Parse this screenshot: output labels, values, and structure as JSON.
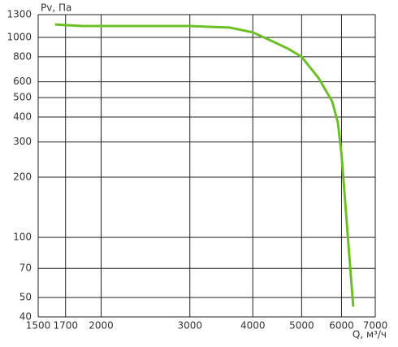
{
  "chart_data": {
    "type": "line",
    "x_label": "Q, м³/ч",
    "y_label": "Pv, Па",
    "x": [
      1620,
      1830,
      2300,
      3000,
      3600,
      4000,
      4400,
      4700,
      5000,
      5400,
      5750,
      5900,
      6000,
      6330
    ],
    "series": [
      {
        "name": "Pv",
        "color": "#6cc024",
        "values": [
          1160,
          1140,
          1140,
          1140,
          1120,
          1060,
          950,
          878,
          800,
          627,
          478,
          376,
          260,
          45
        ]
      }
    ],
    "xscale": "log",
    "yscale": "log",
    "xlim": [
      1500,
      7000
    ],
    "ylim": [
      40,
      1300
    ],
    "xticks": [
      1500,
      1700,
      2000,
      3000,
      4000,
      5000,
      6000,
      7000
    ],
    "yticks": [
      40,
      50,
      70,
      100,
      200,
      300,
      400,
      500,
      600,
      800,
      1000,
      1300
    ],
    "grid": true
  }
}
